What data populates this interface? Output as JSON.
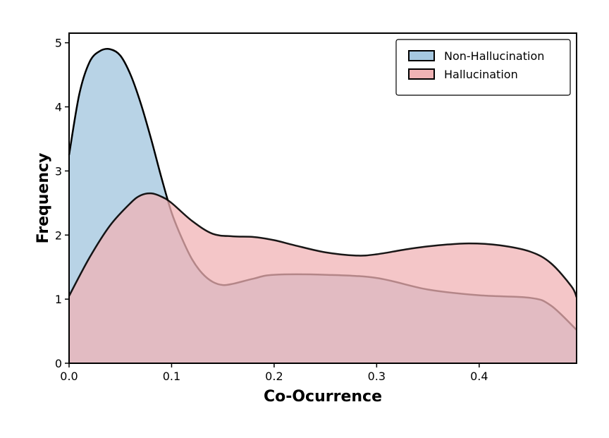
{
  "chart_data": {
    "type": "area",
    "xlabel": "Co-Ocurrence",
    "ylabel": "Frequency",
    "xlim": [
      0.0,
      0.495
    ],
    "ylim": [
      0,
      5.15
    ],
    "x_ticks": [
      0.0,
      0.1,
      0.2,
      0.3,
      0.4
    ],
    "x_tick_labels": [
      "0.0",
      "0.1",
      "0.2",
      "0.3",
      "0.4"
    ],
    "y_ticks": [
      0,
      1,
      2,
      3,
      4,
      5
    ],
    "y_tick_labels": [
      "0",
      "1",
      "2",
      "3",
      "4",
      "5"
    ],
    "grid": false,
    "legend_position": "top-right",
    "series": [
      {
        "name": "Non-Hallucination",
        "color": "#a6c8e0",
        "x": [
          0.0,
          0.01,
          0.02,
          0.03,
          0.04,
          0.05,
          0.06,
          0.07,
          0.08,
          0.09,
          0.1,
          0.11,
          0.12,
          0.13,
          0.14,
          0.15,
          0.16,
          0.18,
          0.2,
          0.25,
          0.3,
          0.35,
          0.4,
          0.45,
          0.47,
          0.495
        ],
        "values": [
          3.25,
          4.2,
          4.7,
          4.87,
          4.9,
          4.8,
          4.5,
          4.05,
          3.5,
          2.9,
          2.35,
          1.95,
          1.62,
          1.4,
          1.27,
          1.22,
          1.24,
          1.32,
          1.38,
          1.38,
          1.33,
          1.15,
          1.06,
          1.02,
          0.9,
          0.52
        ]
      },
      {
        "name": "Hallucination",
        "color": "#f0b3b5",
        "x": [
          0.0,
          0.02,
          0.04,
          0.06,
          0.07,
          0.08,
          0.09,
          0.1,
          0.12,
          0.14,
          0.16,
          0.18,
          0.2,
          0.22,
          0.25,
          0.28,
          0.3,
          0.33,
          0.36,
          0.39,
          0.42,
          0.45,
          0.47,
          0.49,
          0.495
        ],
        "values": [
          1.05,
          1.65,
          2.15,
          2.5,
          2.62,
          2.65,
          2.6,
          2.5,
          2.22,
          2.02,
          1.98,
          1.97,
          1.92,
          1.84,
          1.73,
          1.68,
          1.7,
          1.78,
          1.84,
          1.87,
          1.84,
          1.74,
          1.56,
          1.2,
          1.03
        ]
      }
    ]
  }
}
